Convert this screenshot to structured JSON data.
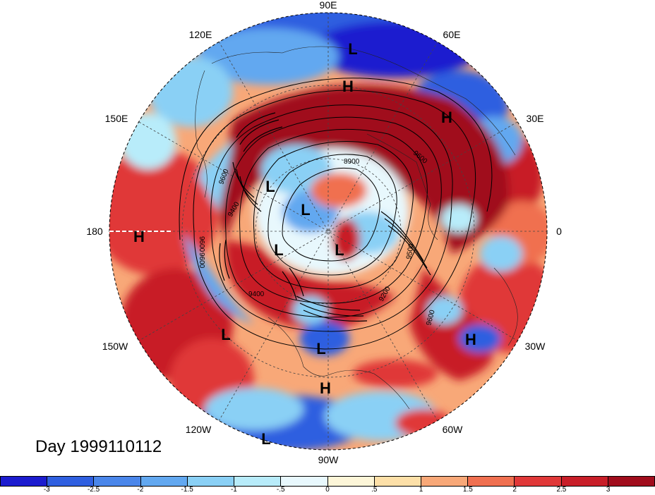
{
  "map": {
    "projection": "polar-stereographic-north",
    "longitude_labels": [
      {
        "text": "90E",
        "lon": 90
      },
      {
        "text": "60E",
        "lon": 60
      },
      {
        "text": "30E",
        "lon": 30
      },
      {
        "text": "0",
        "lon": 0
      },
      {
        "text": "30W",
        "lon": -30
      },
      {
        "text": "60W",
        "lon": -60
      },
      {
        "text": "90W",
        "lon": -90
      },
      {
        "text": "120W",
        "lon": -120
      },
      {
        "text": "150W",
        "lon": -150
      },
      {
        "text": "180",
        "lon": 180
      },
      {
        "text": "150E",
        "lon": 150
      },
      {
        "text": "120E",
        "lon": 120
      }
    ],
    "pressure_centers": [
      {
        "type": "L",
        "label": "L"
      },
      {
        "type": "H",
        "label": "H"
      },
      {
        "type": "H",
        "label": "H"
      },
      {
        "type": "L",
        "label": "L"
      },
      {
        "type": "L",
        "label": "L"
      },
      {
        "type": "L",
        "label": "L"
      },
      {
        "type": "L",
        "label": "L"
      },
      {
        "type": "H",
        "label": "H"
      },
      {
        "type": "L",
        "label": "L"
      },
      {
        "type": "L",
        "label": "L"
      },
      {
        "type": "H",
        "label": "H"
      },
      {
        "type": "H",
        "label": "H"
      },
      {
        "type": "L",
        "label": "L"
      }
    ],
    "contour_labels": [
      "9600",
      "9400",
      "9600",
      "9600",
      "9400",
      "9200",
      "9500",
      "9600",
      "8900",
      "9600"
    ],
    "colors": {
      "deep_blue": "#1c1ccf",
      "blue": "#2f5fe0",
      "mid_blue": "#5aa0ee",
      "light_blue": "#8ad0f5",
      "pale_blue": "#b8ecfa",
      "very_pale_blue": "#e8f8fd",
      "cream": "#fdf6d8",
      "light_orange": "#fde0a8",
      "orange": "#f8a878",
      "red_orange": "#f07050",
      "red": "#e03838",
      "dark_red": "#c81e28",
      "deep_red": "#a00c1c"
    }
  },
  "title": {
    "day_label": "Day 1999110112"
  },
  "colorbar": {
    "colors": [
      "#1c1ccf",
      "#2f5fe0",
      "#4a86ea",
      "#62a8f0",
      "#8ad0f5",
      "#b8ecfa",
      "#e8f8fd",
      "#fdf6d8",
      "#fde0a8",
      "#f8a878",
      "#f07050",
      "#e03838",
      "#c81e28",
      "#a00c1c"
    ],
    "tick_labels": [
      "-3",
      "-2.5",
      "-2",
      "-1.5",
      "-1",
      "-.5",
      "0",
      ".5",
      "1",
      "1.5",
      "2",
      "2.5",
      "3"
    ]
  }
}
